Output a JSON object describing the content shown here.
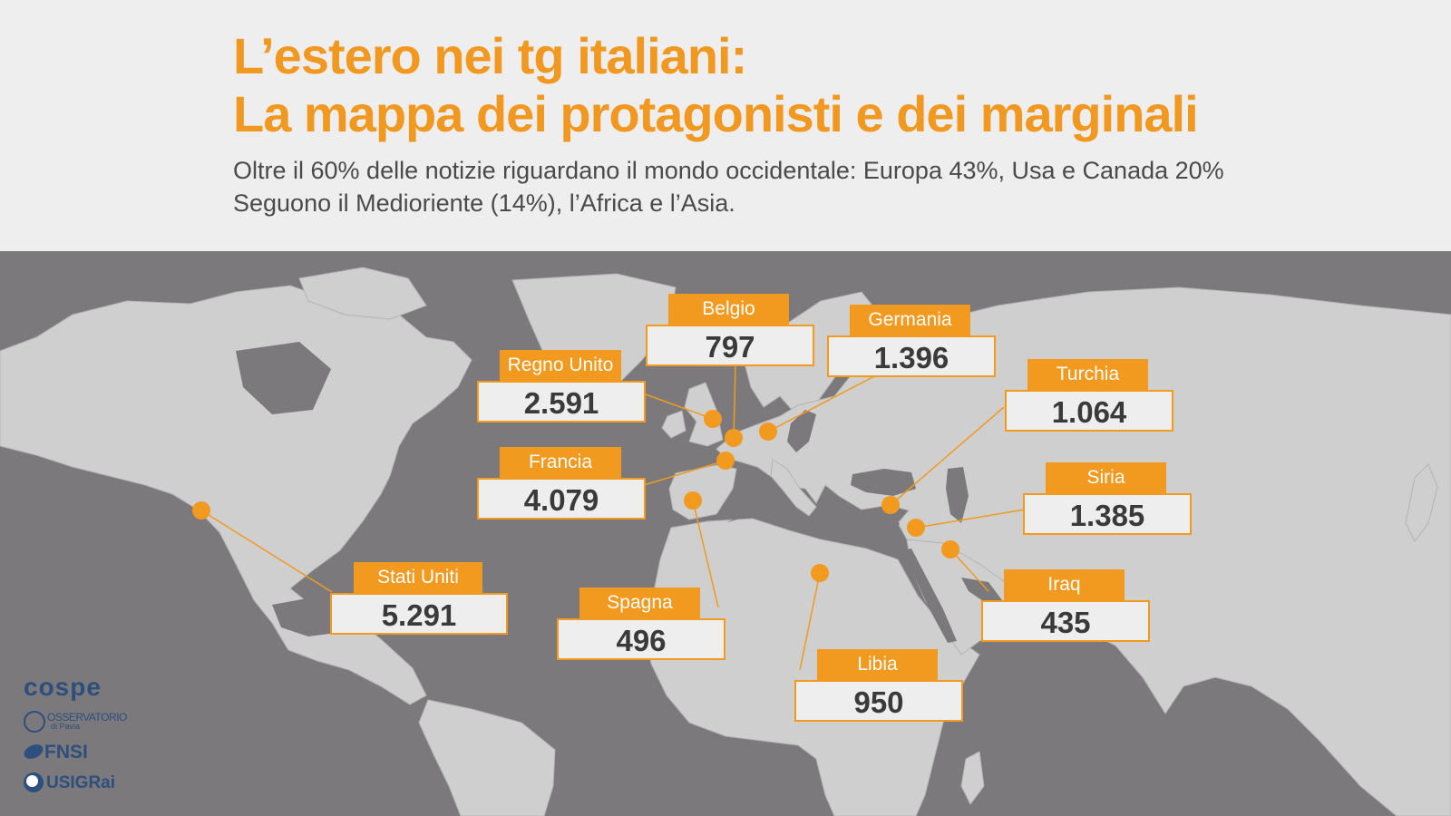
{
  "header": {
    "title_line1": "L’estero nei tg italiani:",
    "title_line2": "La mappa dei protagonisti e dei marginali",
    "subtitle_line1": "Oltre il 60% delle notizie riguardano il mondo occidentale: Europa 43%, Usa e Canada 20%",
    "subtitle_line2": "Seguono il Medioriente (14%), l’Africa e l’Asia."
  },
  "colors": {
    "accent": "#f29a1f",
    "ocean": "#7b797b",
    "land": "#cfcfcf",
    "background": "#efeeef",
    "value_text": "#3a3a3a"
  },
  "countries": [
    {
      "id": "stati-uniti",
      "label": "Stati Uniti",
      "value": "5.291"
    },
    {
      "id": "francia",
      "label": "Francia",
      "value": "4.079"
    },
    {
      "id": "regno-unito",
      "label": "Regno Unito",
      "value": "2.591"
    },
    {
      "id": "germania",
      "label": "Germania",
      "value": "1.396"
    },
    {
      "id": "siria",
      "label": "Siria",
      "value": "1.385"
    },
    {
      "id": "turchia",
      "label": "Turchia",
      "value": "1.064"
    },
    {
      "id": "libia",
      "label": "Libia",
      "value": "950"
    },
    {
      "id": "belgio",
      "label": "Belgio",
      "value": "797"
    },
    {
      "id": "spagna",
      "label": "Spagna",
      "value": "496"
    },
    {
      "id": "iraq",
      "label": "Iraq",
      "value": "435"
    }
  ],
  "logos": {
    "cospe": "cospe",
    "osservatorio_line1": "OSSERVATORIO",
    "osservatorio_line2": "di Pavia",
    "fnsi": "FNSI",
    "usigrai": "USIGRai"
  }
}
